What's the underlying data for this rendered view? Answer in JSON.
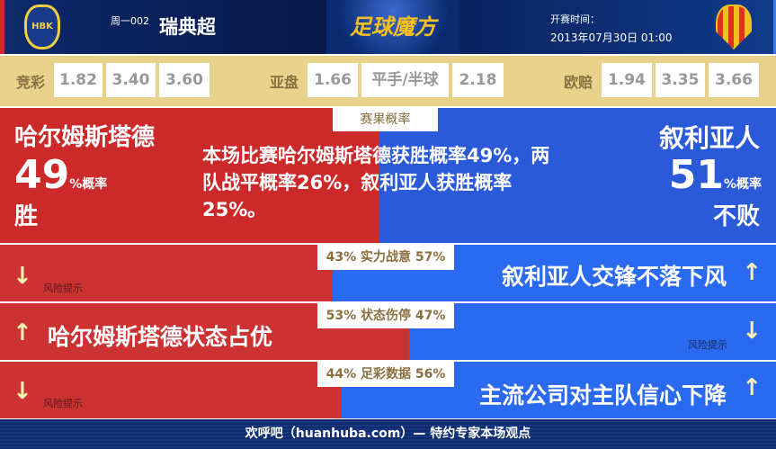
{
  "header": {
    "round": "周一002",
    "league": "瑞典超",
    "brand": "足球魔方",
    "kickoff_label": "开赛时间：",
    "kickoff_time": "2013年07月30日 01:00",
    "home_logo_text": "HBK"
  },
  "odds": {
    "jingcai": {
      "label": "竞彩",
      "values": [
        "1.82",
        "3.40",
        "3.60"
      ]
    },
    "asian": {
      "label": "亚盘",
      "values": [
        "1.66",
        "平手/半球",
        "2.18"
      ]
    },
    "euro": {
      "label": "欧赔",
      "values": [
        "1.94",
        "3.35",
        "3.66"
      ]
    }
  },
  "result": {
    "tag": "赛果概率",
    "home_name": "哈尔姆斯塔德",
    "home_pct": "49",
    "pct_suffix": "%概率",
    "home_result": "胜",
    "away_name": "叙利亚人",
    "away_pct": "51",
    "away_result": "不败",
    "home_win_pct": 49,
    "away_unbeaten_pct": 51,
    "summary": "本场比赛哈尔姆斯塔德获胜概率49%，两队战平概率26%，叙利亚人获胜概率25%。"
  },
  "rows": [
    {
      "tag": "43% 实力战意 57%",
      "home": 43,
      "away": 57,
      "home_risk": "风险提示",
      "away_claim": "叙利亚人交锋不落下风"
    },
    {
      "tag": "53% 状态伤停 47%",
      "home": 53,
      "away": 47,
      "home_claim": "哈尔姆斯塔德状态占优",
      "away_risk": "风险提示"
    },
    {
      "tag": "44% 足彩数据 56%",
      "home": 44,
      "away": 56,
      "home_risk": "风险提示",
      "away_claim": "主流公司对主队信心下降"
    }
  ],
  "icons": {
    "up": "arrow-up-icon",
    "down": "arrow-down-icon"
  },
  "colors": {
    "home": "#cc3232",
    "away": "#2a6af0",
    "arrow": "#fdf0b0"
  },
  "footer": "欢呼吧（huanhuba.com）— 特约专家本场观点"
}
